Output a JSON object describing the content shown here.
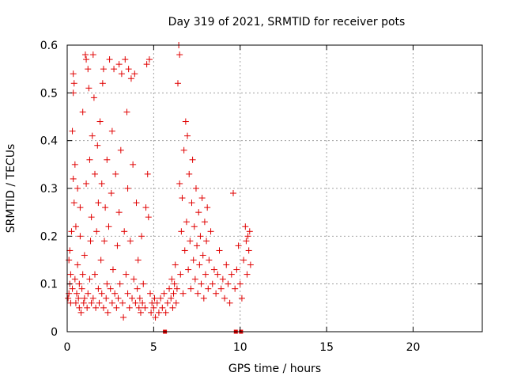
{
  "chart_data": {
    "type": "scatter",
    "title": "Day 319 of 2021, SRMTID for receiver pots",
    "xlabel": "GPS time / hours",
    "ylabel": "SRMTID / TECUs",
    "xlim": [
      0,
      24
    ],
    "ylim": [
      0,
      0.6
    ],
    "xticks": [
      0,
      5,
      10,
      15,
      20
    ],
    "xtick_labels": [
      "0",
      "5",
      "10",
      "15",
      "20"
    ],
    "yticks": [
      0,
      0.1,
      0.2,
      0.3,
      0.4,
      0.5,
      0.6
    ],
    "ytick_labels": [
      "0",
      "0.1",
      "0.2",
      "0.3",
      "0.4",
      "0.5",
      "0.6"
    ],
    "grid": true,
    "marker": "plus",
    "color": "#e00000",
    "series": [
      {
        "name": "SRMTID",
        "points": [
          [
            0.05,
            0.07
          ],
          [
            0.1,
            0.15
          ],
          [
            0.1,
            0.08
          ],
          [
            0.15,
            0.1
          ],
          [
            0.15,
            0.17
          ],
          [
            0.2,
            0.06
          ],
          [
            0.2,
            0.12
          ],
          [
            0.25,
            0.21
          ],
          [
            0.3,
            0.09
          ],
          [
            0.3,
            0.42
          ],
          [
            0.35,
            0.5
          ],
          [
            0.35,
            0.54
          ],
          [
            0.35,
            0.32
          ],
          [
            0.4,
            0.27
          ],
          [
            0.4,
            0.52
          ],
          [
            0.45,
            0.11
          ],
          [
            0.45,
            0.35
          ],
          [
            0.5,
            0.22
          ],
          [
            0.5,
            0.06
          ],
          [
            0.55,
            0.08
          ],
          [
            0.6,
            0.3
          ],
          [
            0.6,
            0.14
          ],
          [
            0.65,
            0.07
          ],
          [
            0.7,
            0.05
          ],
          [
            0.7,
            0.1
          ],
          [
            0.75,
            0.2
          ],
          [
            0.75,
            0.26
          ],
          [
            0.8,
            0.04
          ],
          [
            0.85,
            0.09
          ],
          [
            0.9,
            0.12
          ],
          [
            0.9,
            0.46
          ],
          [
            0.95,
            0.06
          ],
          [
            1.0,
            0.07
          ],
          [
            1.0,
            0.16
          ],
          [
            1.05,
            0.58
          ],
          [
            1.1,
            0.57
          ],
          [
            1.1,
            0.31
          ],
          [
            1.15,
            0.05
          ],
          [
            1.2,
            0.55
          ],
          [
            1.2,
            0.08
          ],
          [
            1.25,
            0.51
          ],
          [
            1.3,
            0.36
          ],
          [
            1.3,
            0.11
          ],
          [
            1.35,
            0.19
          ],
          [
            1.4,
            0.06
          ],
          [
            1.4,
            0.24
          ],
          [
            1.45,
            0.41
          ],
          [
            1.5,
            0.58
          ],
          [
            1.5,
            0.07
          ],
          [
            1.55,
            0.49
          ],
          [
            1.6,
            0.12
          ],
          [
            1.6,
            0.33
          ],
          [
            1.65,
            0.05
          ],
          [
            1.7,
            0.21
          ],
          [
            1.75,
            0.39
          ],
          [
            1.8,
            0.09
          ],
          [
            1.8,
            0.27
          ],
          [
            1.85,
            0.06
          ],
          [
            1.9,
            0.44
          ],
          [
            1.95,
            0.15
          ],
          [
            2.0,
            0.08
          ],
          [
            2.0,
            0.31
          ],
          [
            2.05,
            0.52
          ],
          [
            2.1,
            0.55
          ],
          [
            2.1,
            0.05
          ],
          [
            2.15,
            0.19
          ],
          [
            2.2,
            0.26
          ],
          [
            2.25,
            0.07
          ],
          [
            2.3,
            0.1
          ],
          [
            2.3,
            0.36
          ],
          [
            2.35,
            0.04
          ],
          [
            2.4,
            0.22
          ],
          [
            2.45,
            0.57
          ],
          [
            2.5,
            0.09
          ],
          [
            2.55,
            0.29
          ],
          [
            2.6,
            0.06
          ],
          [
            2.6,
            0.42
          ],
          [
            2.65,
            0.13
          ],
          [
            2.7,
            0.55
          ],
          [
            2.75,
            0.08
          ],
          [
            2.8,
            0.33
          ],
          [
            2.85,
            0.05
          ],
          [
            2.9,
            0.18
          ],
          [
            2.95,
            0.07
          ],
          [
            3.0,
            0.56
          ],
          [
            3.0,
            0.25
          ],
          [
            3.05,
            0.1
          ],
          [
            3.1,
            0.38
          ],
          [
            3.15,
            0.54
          ],
          [
            3.2,
            0.06
          ],
          [
            3.25,
            0.03
          ],
          [
            3.3,
            0.21
          ],
          [
            3.35,
            0.57
          ],
          [
            3.4,
            0.12
          ],
          [
            3.45,
            0.46
          ],
          [
            3.5,
            0.08
          ],
          [
            3.5,
            0.3
          ],
          [
            3.55,
            0.55
          ],
          [
            3.6,
            0.05
          ],
          [
            3.65,
            0.19
          ],
          [
            3.7,
            0.53
          ],
          [
            3.75,
            0.07
          ],
          [
            3.8,
            0.35
          ],
          [
            3.85,
            0.11
          ],
          [
            3.9,
            0.54
          ],
          [
            3.95,
            0.06
          ],
          [
            4.0,
            0.27
          ],
          [
            4.05,
            0.09
          ],
          [
            4.1,
            0.15
          ],
          [
            4.15,
            0.05
          ],
          [
            4.2,
            0.07
          ],
          [
            4.25,
            0.04
          ],
          [
            4.3,
            0.2
          ],
          [
            4.35,
            0.06
          ],
          [
            4.4,
            0.1
          ],
          [
            4.5,
            0.05
          ],
          [
            4.55,
            0.26
          ],
          [
            4.6,
            0.56
          ],
          [
            4.65,
            0.33
          ],
          [
            4.7,
            0.24
          ],
          [
            4.75,
            0.57
          ],
          [
            4.8,
            0.08
          ],
          [
            4.85,
            0.04
          ],
          [
            4.9,
            0.06
          ],
          [
            5.0,
            0.05
          ],
          [
            5.05,
            0.07
          ],
          [
            5.1,
            0.03
          ],
          [
            5.2,
            0.06
          ],
          [
            5.3,
            0.04
          ],
          [
            5.4,
            0.07
          ],
          [
            5.5,
            0.05
          ],
          [
            5.6,
            0.08
          ],
          [
            5.7,
            0.04
          ],
          [
            5.8,
            0.06
          ],
          [
            5.9,
            0.09
          ],
          [
            6.0,
            0.07
          ],
          [
            6.05,
            0.11
          ],
          [
            6.1,
            0.05
          ],
          [
            6.15,
            0.08
          ],
          [
            6.2,
            0.1
          ],
          [
            6.25,
            0.14
          ],
          [
            6.3,
            0.06
          ],
          [
            6.35,
            0.09
          ],
          [
            6.4,
            0.52
          ],
          [
            6.45,
            0.6
          ],
          [
            6.5,
            0.58
          ],
          [
            6.5,
            0.31
          ],
          [
            6.55,
            0.12
          ],
          [
            6.6,
            0.21
          ],
          [
            6.65,
            0.28
          ],
          [
            6.7,
            0.08
          ],
          [
            6.75,
            0.38
          ],
          [
            6.8,
            0.17
          ],
          [
            6.85,
            0.44
          ],
          [
            6.9,
            0.23
          ],
          [
            6.95,
            0.41
          ],
          [
            7.0,
            0.13
          ],
          [
            7.05,
            0.33
          ],
          [
            7.1,
            0.19
          ],
          [
            7.15,
            0.09
          ],
          [
            7.2,
            0.27
          ],
          [
            7.25,
            0.36
          ],
          [
            7.3,
            0.15
          ],
          [
            7.35,
            0.22
          ],
          [
            7.4,
            0.11
          ],
          [
            7.45,
            0.3
          ],
          [
            7.5,
            0.18
          ],
          [
            7.55,
            0.08
          ],
          [
            7.6,
            0.25
          ],
          [
            7.65,
            0.14
          ],
          [
            7.7,
            0.2
          ],
          [
            7.75,
            0.1
          ],
          [
            7.8,
            0.28
          ],
          [
            7.85,
            0.16
          ],
          [
            7.9,
            0.07
          ],
          [
            7.95,
            0.23
          ],
          [
            8.0,
            0.12
          ],
          [
            8.05,
            0.19
          ],
          [
            8.1,
            0.26
          ],
          [
            8.15,
            0.09
          ],
          [
            8.2,
            0.15
          ],
          [
            8.3,
            0.21
          ],
          [
            8.4,
            0.1
          ],
          [
            8.5,
            0.13
          ],
          [
            8.6,
            0.08
          ],
          [
            8.7,
            0.12
          ],
          [
            8.8,
            0.17
          ],
          [
            8.9,
            0.09
          ],
          [
            9.0,
            0.11
          ],
          [
            9.1,
            0.07
          ],
          [
            9.2,
            0.14
          ],
          [
            9.3,
            0.1
          ],
          [
            9.4,
            0.06
          ],
          [
            9.5,
            0.12
          ],
          [
            9.6,
            0.29
          ],
          [
            9.7,
            0.09
          ],
          [
            9.8,
            0.13
          ],
          [
            9.9,
            0.18
          ],
          [
            10.0,
            0.1
          ],
          [
            10.1,
            0.07
          ],
          [
            10.2,
            0.15
          ],
          [
            10.3,
            0.22
          ],
          [
            10.35,
            0.19
          ],
          [
            10.4,
            0.12
          ],
          [
            10.45,
            0.2
          ],
          [
            10.5,
            0.17
          ],
          [
            10.55,
            0.21
          ],
          [
            10.6,
            0.14
          ]
        ]
      }
    ],
    "zero_markers_x": [
      5.65,
      9.75,
      10.05
    ]
  }
}
